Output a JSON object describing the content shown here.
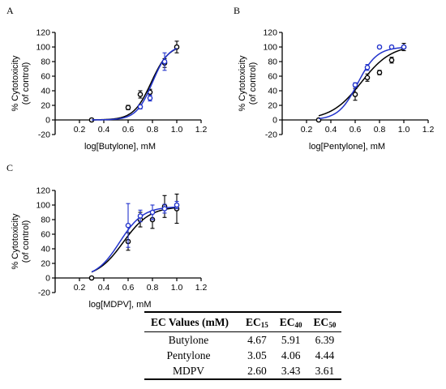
{
  "colors": {
    "black_series": "#000000",
    "blue_series": "#2233cc"
  },
  "chart_data": [
    {
      "panel_label": "A",
      "type": "scatter",
      "xlabel": "log[Butylone], mM",
      "ylabel": "% Cytotoxicity (of control)",
      "ylabel_lines": [
        "% Cytotoxicity",
        "(of control)"
      ],
      "xlim": [
        0,
        1.2
      ],
      "ylim": [
        -20,
        120
      ],
      "xticks": [
        "0.2",
        "0.4",
        "0.6",
        "0.8",
        "1.0",
        "1.2"
      ],
      "yticks": [
        "-20",
        "0",
        "20",
        "40",
        "60",
        "80",
        "100",
        "120"
      ],
      "series": [
        {
          "color": "#000000",
          "x": [
            0.3,
            0.6,
            0.7,
            0.78,
            0.9,
            1.0
          ],
          "y": [
            0,
            17,
            35,
            38,
            78,
            100
          ],
          "err": [
            2,
            3,
            5,
            4,
            6,
            8
          ],
          "fit": {
            "bottom": 0,
            "top": 103,
            "logec50": 0.79,
            "hill": 6.0
          }
        },
        {
          "color": "#2233cc",
          "x": [
            0.7,
            0.78,
            0.9
          ],
          "y": [
            18,
            30,
            80
          ],
          "err": [
            3,
            4,
            12
          ],
          "fit": {
            "bottom": 0,
            "top": 103,
            "logec50": 0.8,
            "hill": 6.5
          }
        }
      ]
    },
    {
      "panel_label": "B",
      "type": "scatter",
      "xlabel": "log[Pentylone], mM",
      "ylabel": "% Cytotoxicity (of control)",
      "ylabel_lines": [
        "% Cytotoxicity",
        "(of control)"
      ],
      "xlim": [
        0,
        1.2
      ],
      "ylim": [
        -20,
        120
      ],
      "xticks": [
        "0.2",
        "0.4",
        "0.6",
        "0.8",
        "1.0",
        "1.2"
      ],
      "yticks": [
        "-20",
        "0",
        "20",
        "40",
        "60",
        "80",
        "100",
        "120"
      ],
      "series": [
        {
          "color": "#000000",
          "x": [
            0.3,
            0.6,
            0.7,
            0.8,
            0.9,
            1.0
          ],
          "y": [
            0,
            35,
            58,
            65,
            82,
            100
          ],
          "err": [
            2,
            8,
            5,
            3,
            4,
            5
          ],
          "fit": {
            "bottom": 0,
            "top": 103,
            "logec50": 0.65,
            "hill": 3.5
          }
        },
        {
          "color": "#2233cc",
          "x": [
            0.6,
            0.7,
            0.8,
            0.9,
            1.0
          ],
          "y": [
            48,
            72,
            100,
            100,
            100
          ],
          "err": [
            3,
            4,
            2,
            2,
            2
          ],
          "fit": {
            "bottom": 0,
            "top": 100,
            "logec50": 0.62,
            "hill": 5.5
          }
        }
      ]
    },
    {
      "panel_label": "C",
      "type": "scatter",
      "xlabel": "log[MDPV], mM",
      "ylabel": "% Cytotoxicity (of control)",
      "ylabel_lines": [
        "% Cytotoxicity",
        "(of control)"
      ],
      "xlim": [
        0,
        1.2
      ],
      "ylim": [
        -20,
        120
      ],
      "xticks": [
        "0.2",
        "0.4",
        "0.6",
        "0.8",
        "1.0",
        "1.2"
      ],
      "yticks": [
        "-20",
        "0",
        "20",
        "40",
        "60",
        "80",
        "100",
        "120"
      ],
      "series": [
        {
          "color": "#000000",
          "x": [
            0.3,
            0.6,
            0.7,
            0.8,
            0.9,
            1.0
          ],
          "y": [
            0,
            50,
            80,
            80,
            98,
            95
          ],
          "err": [
            2,
            12,
            10,
            12,
            15,
            20
          ],
          "fit": {
            "bottom": 0,
            "top": 98,
            "logec50": 0.56,
            "hill": 4.0
          }
        },
        {
          "color": "#2233cc",
          "x": [
            0.6,
            0.7,
            0.8,
            0.9,
            1.0
          ],
          "y": [
            72,
            85,
            90,
            95,
            100
          ],
          "err": [
            30,
            8,
            10,
            6,
            5
          ],
          "fit": {
            "bottom": 0,
            "top": 98,
            "logec50": 0.53,
            "hill": 4.5
          }
        }
      ]
    }
  ],
  "table": {
    "headers": [
      "EC Values (mM)",
      "EC",
      "EC",
      "EC"
    ],
    "header_subs": [
      "",
      "15",
      "40",
      "50"
    ],
    "rows": [
      [
        "Butylone",
        "4.67",
        "5.91",
        "6.39"
      ],
      [
        "Pentylone",
        "3.05",
        "4.06",
        "4.44"
      ],
      [
        "MDPV",
        "2.60",
        "3.43",
        "3.61"
      ]
    ]
  }
}
